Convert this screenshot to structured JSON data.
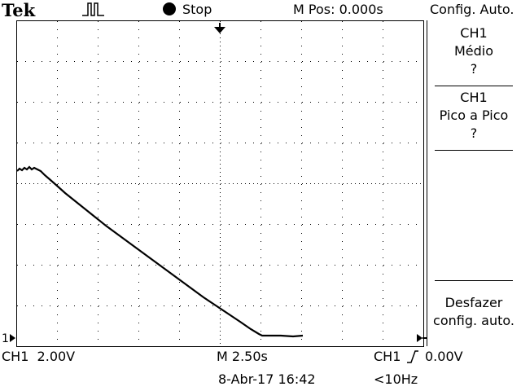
{
  "header": {
    "brand": "Tek",
    "acquire_icon": "pulse-icon",
    "run_state_icon": "stop-dot-icon",
    "run_state": "Stop",
    "horizontal_position": "M Pos: 0.000s",
    "menu_title": "Config. Auto."
  },
  "side_menu": {
    "item1": {
      "line1": "CH1",
      "line2": "Médio",
      "line3": "?"
    },
    "item2": {
      "line1": "CH1",
      "line2": "Pico a Pico",
      "line3": "?"
    },
    "item3": {
      "line1": "Desfazer",
      "line2": "config. auto."
    }
  },
  "markers": {
    "channel_ground": "1",
    "trigger_position_icon": "trigger-position-arrow-icon",
    "trigger_level_icon": "trigger-level-arrow-icon"
  },
  "footer": {
    "channel_scale": "CH1  2.00V",
    "time_scale": "M 2.50s",
    "trigger_source": "CH1",
    "trigger_slope_icon": "rising-edge-icon",
    "trigger_level": "0.00V",
    "date_time": "8-Abr-17 16:42",
    "frequency": "<10Hz"
  },
  "colors": {
    "background": "#ffffff",
    "trace": "#000000",
    "grid": "#000000"
  }
}
